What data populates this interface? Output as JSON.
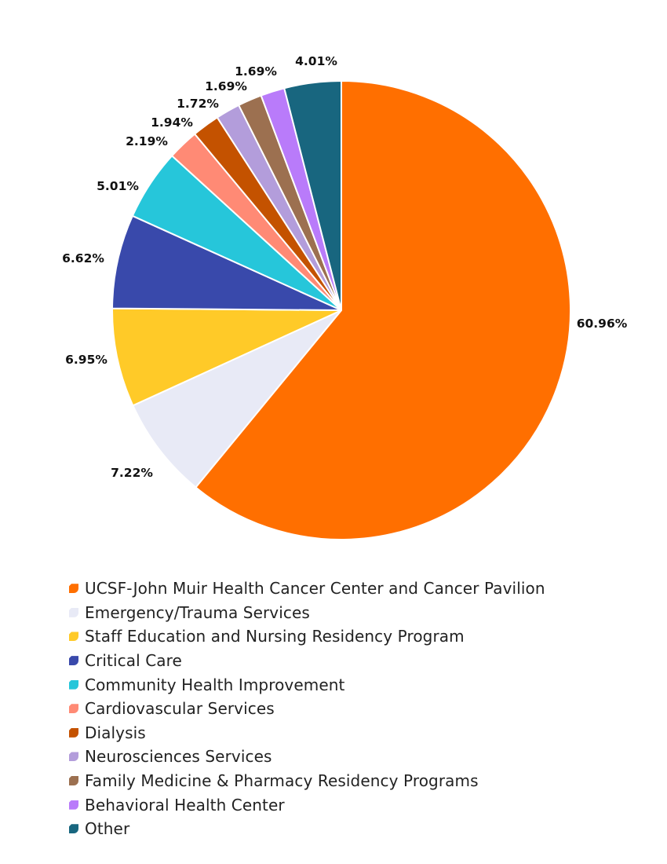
{
  "chart_data": {
    "type": "pie",
    "start_angle": "top, clockwise",
    "legend_position": "bottom",
    "slices": [
      {
        "name": "UCSF-John Muir Health Cancer Center and Cancer Pavilion",
        "value": 60.96,
        "label": "60.96%",
        "color": "#ff6f00"
      },
      {
        "name": "Emergency/Trauma Services",
        "value": 7.22,
        "label": "7.22%",
        "color": "#e8eaf6"
      },
      {
        "name": "Staff Education and Nursing Residency Program",
        "value": 6.95,
        "label": "6.95%",
        "color": "#ffca28"
      },
      {
        "name": "Critical Care",
        "value": 6.62,
        "label": "6.62%",
        "color": "#3949ab"
      },
      {
        "name": "Community Health Improvement",
        "value": 5.01,
        "label": "5.01%",
        "color": "#26c6da"
      },
      {
        "name": "Cardiovascular Services",
        "value": 2.19,
        "label": "2.19%",
        "color": "#ff8a75"
      },
      {
        "name": "Dialysis",
        "value": 1.94,
        "label": "1.94%",
        "color": "#c45200"
      },
      {
        "name": "Neurosciences Services",
        "value": 1.72,
        "label": "1.72%",
        "color": "#b39ddb"
      },
      {
        "name": "Family Medicine & Pharmacy Residency Programs",
        "value": 1.69,
        "label": "1.69%",
        "color": "#9c7050"
      },
      {
        "name": "Behavioral Health Center",
        "value": 1.69,
        "label": "1.69%",
        "color": "#b97bfa"
      },
      {
        "name": "Other",
        "value": 4.01,
        "label": "4.01%",
        "color": "#18667f"
      }
    ]
  }
}
